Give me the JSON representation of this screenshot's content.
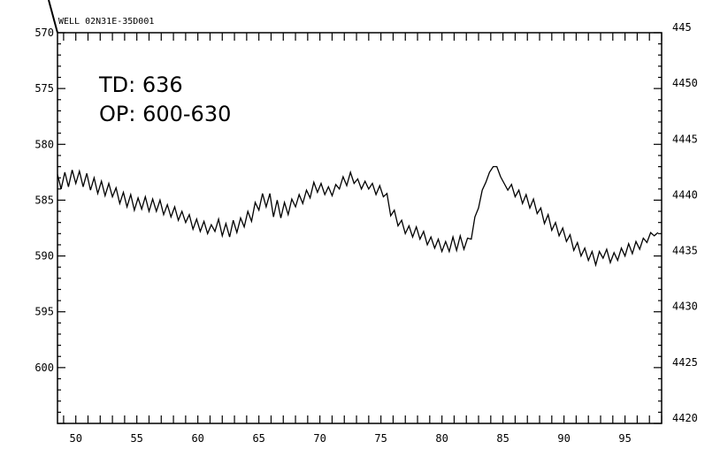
{
  "chart_data": {
    "type": "line",
    "title": "WELL 02N31E-35D001",
    "annotations": [
      "TD: 636",
      "OP: 600-630"
    ],
    "x_ticks": [
      50,
      55,
      60,
      65,
      70,
      75,
      80,
      85,
      90,
      95
    ],
    "xlim": [
      48.5,
      98
    ],
    "y_left_ticks": [
      570,
      575,
      580,
      585,
      590,
      595,
      600
    ],
    "y_left_lim": [
      605,
      570
    ],
    "y_left_inverted": true,
    "y_right_ticks": [
      445,
      4450,
      4445,
      4440,
      4435,
      4430,
      4425,
      4420
    ],
    "y_right_lim": [
      4420,
      4455
    ],
    "grid": false,
    "series": [
      {
        "x": [
          48.5,
          48.8,
          49.1,
          49.4,
          49.7,
          50.0,
          50.3,
          50.6,
          50.9,
          51.2,
          51.5,
          51.8,
          52.1,
          52.4,
          52.7,
          53.0,
          53.3,
          53.6,
          53.9,
          54.2,
          54.5,
          54.8,
          55.1,
          55.4,
          55.7,
          56.0,
          56.3,
          56.6,
          56.9,
          57.2,
          57.5,
          57.8,
          58.1,
          58.4,
          58.7,
          59.0,
          59.3,
          59.6,
          59.9,
          60.2,
          60.5,
          60.8,
          61.1,
          61.4,
          61.7,
          62.0,
          62.3,
          62.6,
          62.9,
          63.2,
          63.5,
          63.8,
          64.1,
          64.4,
          64.7,
          65.0,
          65.3,
          65.6,
          65.9,
          66.2,
          66.5,
          66.8,
          67.1,
          67.4,
          67.7,
          68.0,
          68.3,
          68.6,
          68.9,
          69.2,
          69.5,
          69.8,
          70.1,
          70.4,
          70.7,
          71.0,
          71.3,
          71.6,
          71.9,
          72.2,
          72.5,
          72.8,
          73.1,
          73.4,
          73.7,
          74.0,
          74.3,
          74.6,
          74.9,
          75.2,
          75.5,
          75.8,
          76.1,
          76.4,
          76.7,
          77.0,
          77.3,
          77.6,
          77.9,
          78.2,
          78.5,
          78.8,
          79.1,
          79.4,
          79.7,
          80.0,
          80.3,
          80.6,
          80.9,
          81.2,
          81.5,
          81.8,
          82.1,
          82.4,
          82.7,
          83.0,
          83.3,
          83.6,
          83.9,
          84.2,
          84.5,
          84.8,
          85.1,
          85.4,
          85.7,
          86.0,
          86.3,
          86.6,
          86.9,
          87.2,
          87.5,
          87.8,
          88.1,
          88.4,
          88.7,
          89.0,
          89.3,
          89.6,
          89.9,
          90.2,
          90.5,
          90.8,
          91.1,
          91.4,
          91.7,
          92.0,
          92.3,
          92.6,
          92.9,
          93.2,
          93.5,
          93.8,
          94.1,
          94.4,
          94.7,
          95.0,
          95.3,
          95.6,
          95.9,
          96.2,
          96.5,
          96.8,
          97.1,
          97.4,
          97.7
        ],
        "values": [
          582.7,
          584.0,
          582.5,
          583.8,
          582.3,
          583.5,
          582.4,
          583.8,
          582.6,
          584.1,
          583.0,
          584.4,
          583.3,
          584.6,
          583.5,
          584.7,
          583.9,
          585.3,
          584.3,
          585.6,
          584.5,
          585.9,
          584.8,
          585.8,
          584.7,
          586.0,
          584.9,
          586.0,
          585.0,
          586.3,
          585.4,
          586.5,
          585.6,
          586.8,
          586.0,
          587.0,
          586.3,
          587.6,
          586.7,
          587.8,
          586.9,
          588.0,
          587.2,
          587.8,
          586.7,
          588.2,
          587.1,
          588.3,
          586.8,
          587.9,
          586.6,
          587.4,
          586.0,
          586.9,
          585.2,
          585.9,
          584.4,
          585.6,
          584.4,
          586.5,
          585.0,
          586.6,
          585.2,
          586.3,
          584.9,
          585.6,
          584.5,
          585.3,
          584.1,
          584.8,
          583.4,
          584.3,
          583.5,
          584.5,
          583.8,
          584.6,
          583.6,
          584.0,
          582.9,
          583.7,
          582.5,
          583.5,
          583.1,
          584.0,
          583.3,
          584.0,
          583.5,
          584.5,
          583.7,
          584.7,
          584.4,
          586.4,
          585.9,
          587.3,
          586.8,
          588.0,
          587.3,
          588.3,
          587.4,
          588.5,
          587.8,
          589.0,
          588.3,
          589.3,
          588.5,
          589.6,
          588.7,
          589.6,
          588.3,
          589.5,
          588.2,
          589.4,
          588.4,
          588.5,
          586.5,
          585.7,
          584.1,
          583.4,
          582.5,
          582.0,
          582.0,
          582.9,
          583.5,
          584.1,
          583.6,
          584.7,
          584.1,
          585.3,
          584.5,
          585.7,
          584.9,
          586.2,
          585.7,
          587.1,
          586.3,
          587.7,
          587.0,
          588.2,
          587.5,
          588.7,
          588.1,
          589.5,
          588.8,
          590.0,
          589.3,
          590.4,
          589.6,
          590.8,
          589.6,
          590.2,
          589.4,
          590.6,
          589.7,
          590.4,
          589.3,
          590.0,
          588.9,
          589.8,
          588.7,
          589.4,
          588.4,
          588.8,
          587.9,
          588.2,
          587.9
        ]
      }
    ]
  }
}
